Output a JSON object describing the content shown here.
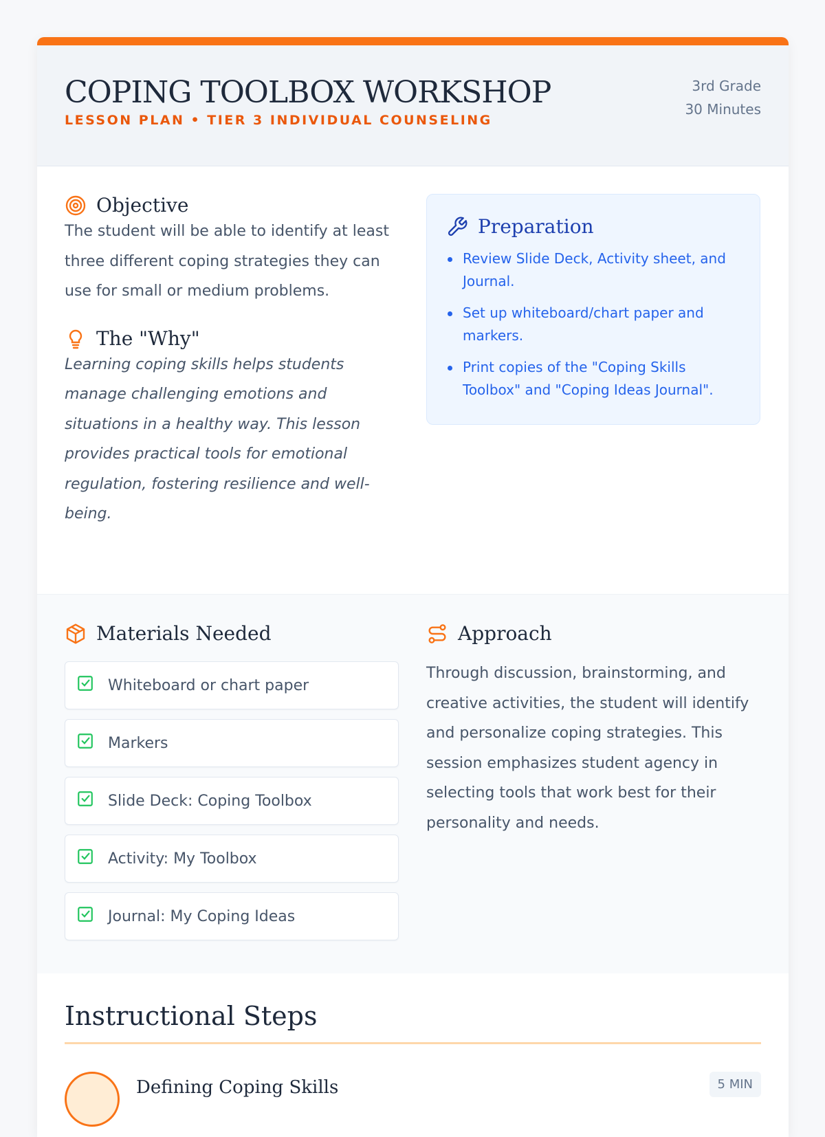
{
  "header": {
    "title": "COPING TOOLBOX WORKSHOP",
    "subtitle": "LESSON PLAN • TIER 3 INDIVIDUAL COUNSELING",
    "grade": "3rd Grade",
    "duration": "30 Minutes"
  },
  "objective": {
    "heading": "Objective",
    "icon": "target-icon",
    "text": "The student will be able to identify at least three different coping strategies they can use for small or medium problems."
  },
  "why": {
    "heading": "The \"Why\"",
    "icon": "lightbulb-icon",
    "text": "Learning coping skills helps students manage challenging emotions and situations in a healthy way. This lesson provides practical tools for emotional regulation, fostering resilience and well-being."
  },
  "preparation": {
    "heading": "Preparation",
    "icon": "wrench-icon",
    "items": [
      "Review Slide Deck, Activity sheet, and Journal.",
      "Set up whiteboard/chart paper and markers.",
      "Print copies of the \"Coping Skills Toolbox\" and \"Coping Ideas Journal\"."
    ]
  },
  "materials": {
    "heading": "Materials Needed",
    "icon": "package-icon",
    "items": [
      "Whiteboard or chart paper",
      "Markers",
      "Slide Deck: Coping Toolbox",
      "Activity: My Toolbox",
      "Journal: My Coping Ideas"
    ]
  },
  "approach": {
    "heading": "Approach",
    "icon": "route-icon",
    "text": "Through discussion, brainstorming, and creative activities, the student will identify and personalize coping strategies. This session emphasizes student agency in selecting tools that work best for their personality and needs."
  },
  "steps": {
    "heading": "Instructional Steps",
    "items": [
      {
        "title": "Defining Coping Skills",
        "duration": "5 MIN"
      }
    ]
  },
  "colors": {
    "accent": "#f97316",
    "blue": "#2563eb",
    "check": "#22c55e"
  }
}
